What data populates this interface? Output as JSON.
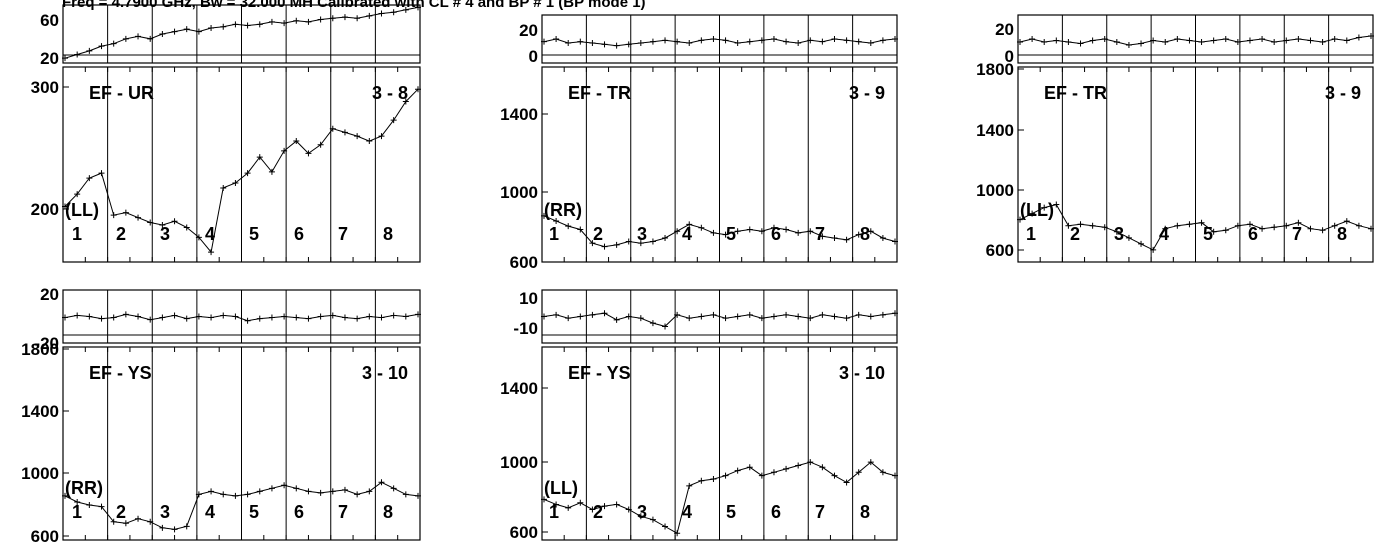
{
  "header": {
    "title": "Freq = 4.7900 GHz, Bw = 32.000 MH   Calibrated with CL # 4 and BP # 1 (BP mode 1)"
  },
  "chart_data": [
    {
      "type": "line",
      "baseline": "EF - UR",
      "channels": "3 - 8",
      "polarization": "(LL)",
      "phase_ticks": [
        "60",
        "20"
      ],
      "phase_ylim": [
        14,
        62
      ],
      "amp_ticks": [
        "300",
        "200"
      ],
      "amp_ylim": [
        160,
        318
      ],
      "scan_labels": [
        "1",
        "2",
        "3",
        "4",
        "5",
        "6",
        "7",
        "8"
      ],
      "series": [
        {
          "values": [
            205,
            215,
            228,
            232,
            198,
            200,
            196,
            192,
            190,
            193,
            188,
            180,
            168,
            220,
            224,
            232,
            245,
            233,
            250,
            258,
            248,
            255,
            268,
            265,
            262,
            258,
            262,
            275,
            290,
            300
          ]
        },
        {
          "values": [
            18,
            21,
            24,
            28,
            30,
            34,
            36,
            34,
            38,
            40,
            42,
            40,
            43,
            44,
            46,
            45,
            46,
            48,
            47,
            49,
            48,
            50,
            51,
            52,
            51,
            53,
            55,
            56,
            58,
            60
          ]
        }
      ]
    },
    {
      "type": "line",
      "baseline": "EF - TR",
      "channels": "3 - 9",
      "polarization": "(RR)",
      "phase_ticks": [
        "20",
        "0"
      ],
      "phase_ylim": [
        -6,
        30
      ],
      "amp_ticks": [
        "1400",
        "1000",
        "600"
      ],
      "amp_ylim": [
        580,
        1720
      ],
      "scan_labels": [
        "1",
        "2",
        "3",
        "4",
        "5",
        "6",
        "7",
        "8"
      ],
      "series": [
        {
          "values": [
            850,
            820,
            790,
            770,
            690,
            670,
            680,
            700,
            690,
            700,
            720,
            760,
            800,
            780,
            750,
            740,
            760,
            770,
            760,
            780,
            770,
            750,
            760,
            730,
            720,
            710,
            740,
            760,
            720,
            700
          ]
        },
        {
          "values": [
            10,
            12,
            9,
            10,
            9,
            8,
            7,
            8,
            9,
            10,
            11,
            10,
            9,
            11,
            12,
            11,
            9,
            10,
            11,
            12,
            10,
            9,
            11,
            10,
            12,
            11,
            10,
            9,
            11,
            12
          ]
        }
      ]
    },
    {
      "type": "line",
      "baseline": "EF - TR",
      "channels": "3 - 9",
      "polarization": "(LL)",
      "phase_ticks": [
        "20",
        "0"
      ],
      "phase_ylim": [
        -4,
        28
      ],
      "amp_ticks": [
        "1800",
        "1400",
        "1000",
        "600"
      ],
      "amp_ylim": [
        520,
        1810
      ],
      "scan_labels": [
        "1",
        "2",
        "3",
        "4",
        "5",
        "6",
        "7",
        "8"
      ],
      "series": [
        {
          "values": [
            800,
            840,
            880,
            900,
            760,
            770,
            760,
            750,
            720,
            680,
            640,
            600,
            740,
            760,
            770,
            780,
            720,
            730,
            760,
            770,
            740,
            750,
            760,
            780,
            740,
            730,
            760,
            790,
            760,
            740
          ]
        },
        {
          "values": [
            10,
            12,
            10,
            11,
            10,
            9,
            11,
            12,
            10,
            8,
            9,
            11,
            10,
            12,
            11,
            10,
            11,
            12,
            10,
            11,
            12,
            10,
            11,
            12,
            11,
            10,
            12,
            11,
            13,
            14
          ]
        }
      ]
    },
    {
      "type": "line",
      "baseline": "EF - YS",
      "channels": "3 - 10",
      "polarization": "(RR)",
      "phase_ticks": [
        "20",
        "-20"
      ],
      "phase_ylim": [
        -24,
        26
      ],
      "amp_ticks": [
        "1800",
        "1400",
        "1000",
        "600"
      ],
      "amp_ylim": [
        580,
        1850
      ],
      "scan_labels": [
        "1",
        "2",
        "3",
        "4",
        "5",
        "6",
        "7",
        "8"
      ],
      "series": [
        {
          "values": [
            870,
            830,
            810,
            800,
            700,
            690,
            720,
            700,
            660,
            650,
            670,
            880,
            900,
            880,
            870,
            880,
            900,
            920,
            940,
            920,
            900,
            890,
            900,
            910,
            880,
            900,
            960,
            920,
            880,
            870
          ]
        },
        {
          "values": [
            0,
            2,
            1,
            -1,
            0,
            3,
            1,
            -2,
            0,
            2,
            -1,
            1,
            0,
            2,
            1,
            -3,
            -1,
            0,
            1,
            0,
            -1,
            1,
            2,
            0,
            -1,
            1,
            0,
            2,
            1,
            3
          ]
        }
      ]
    },
    {
      "type": "line",
      "baseline": "EF - YS",
      "channels": "3 - 10",
      "polarization": "(LL)",
      "phase_ticks": [
        "10",
        "-10"
      ],
      "phase_ylim": [
        -16,
        16
      ],
      "amp_ticks": [
        "1400",
        "1000",
        "600"
      ],
      "amp_ylim": [
        580,
        1720
      ],
      "scan_labels": [
        "1",
        "2",
        "3",
        "4",
        "5",
        "6",
        "7",
        "8"
      ],
      "series": [
        {
          "values": [
            820,
            790,
            770,
            800,
            760,
            780,
            790,
            760,
            720,
            700,
            660,
            620,
            900,
            930,
            940,
            960,
            990,
            1010,
            960,
            980,
            1000,
            1020,
            1040,
            1010,
            960,
            920,
            980,
            1040,
            980,
            960
          ]
        },
        {
          "values": [
            0,
            1,
            -1,
            0,
            1,
            2,
            -2,
            0,
            -1,
            -4,
            -6,
            1,
            -1,
            0,
            1,
            -1,
            0,
            1,
            -1,
            0,
            1,
            0,
            -1,
            1,
            0,
            -1,
            1,
            0,
            1,
            2
          ]
        }
      ]
    }
  ]
}
